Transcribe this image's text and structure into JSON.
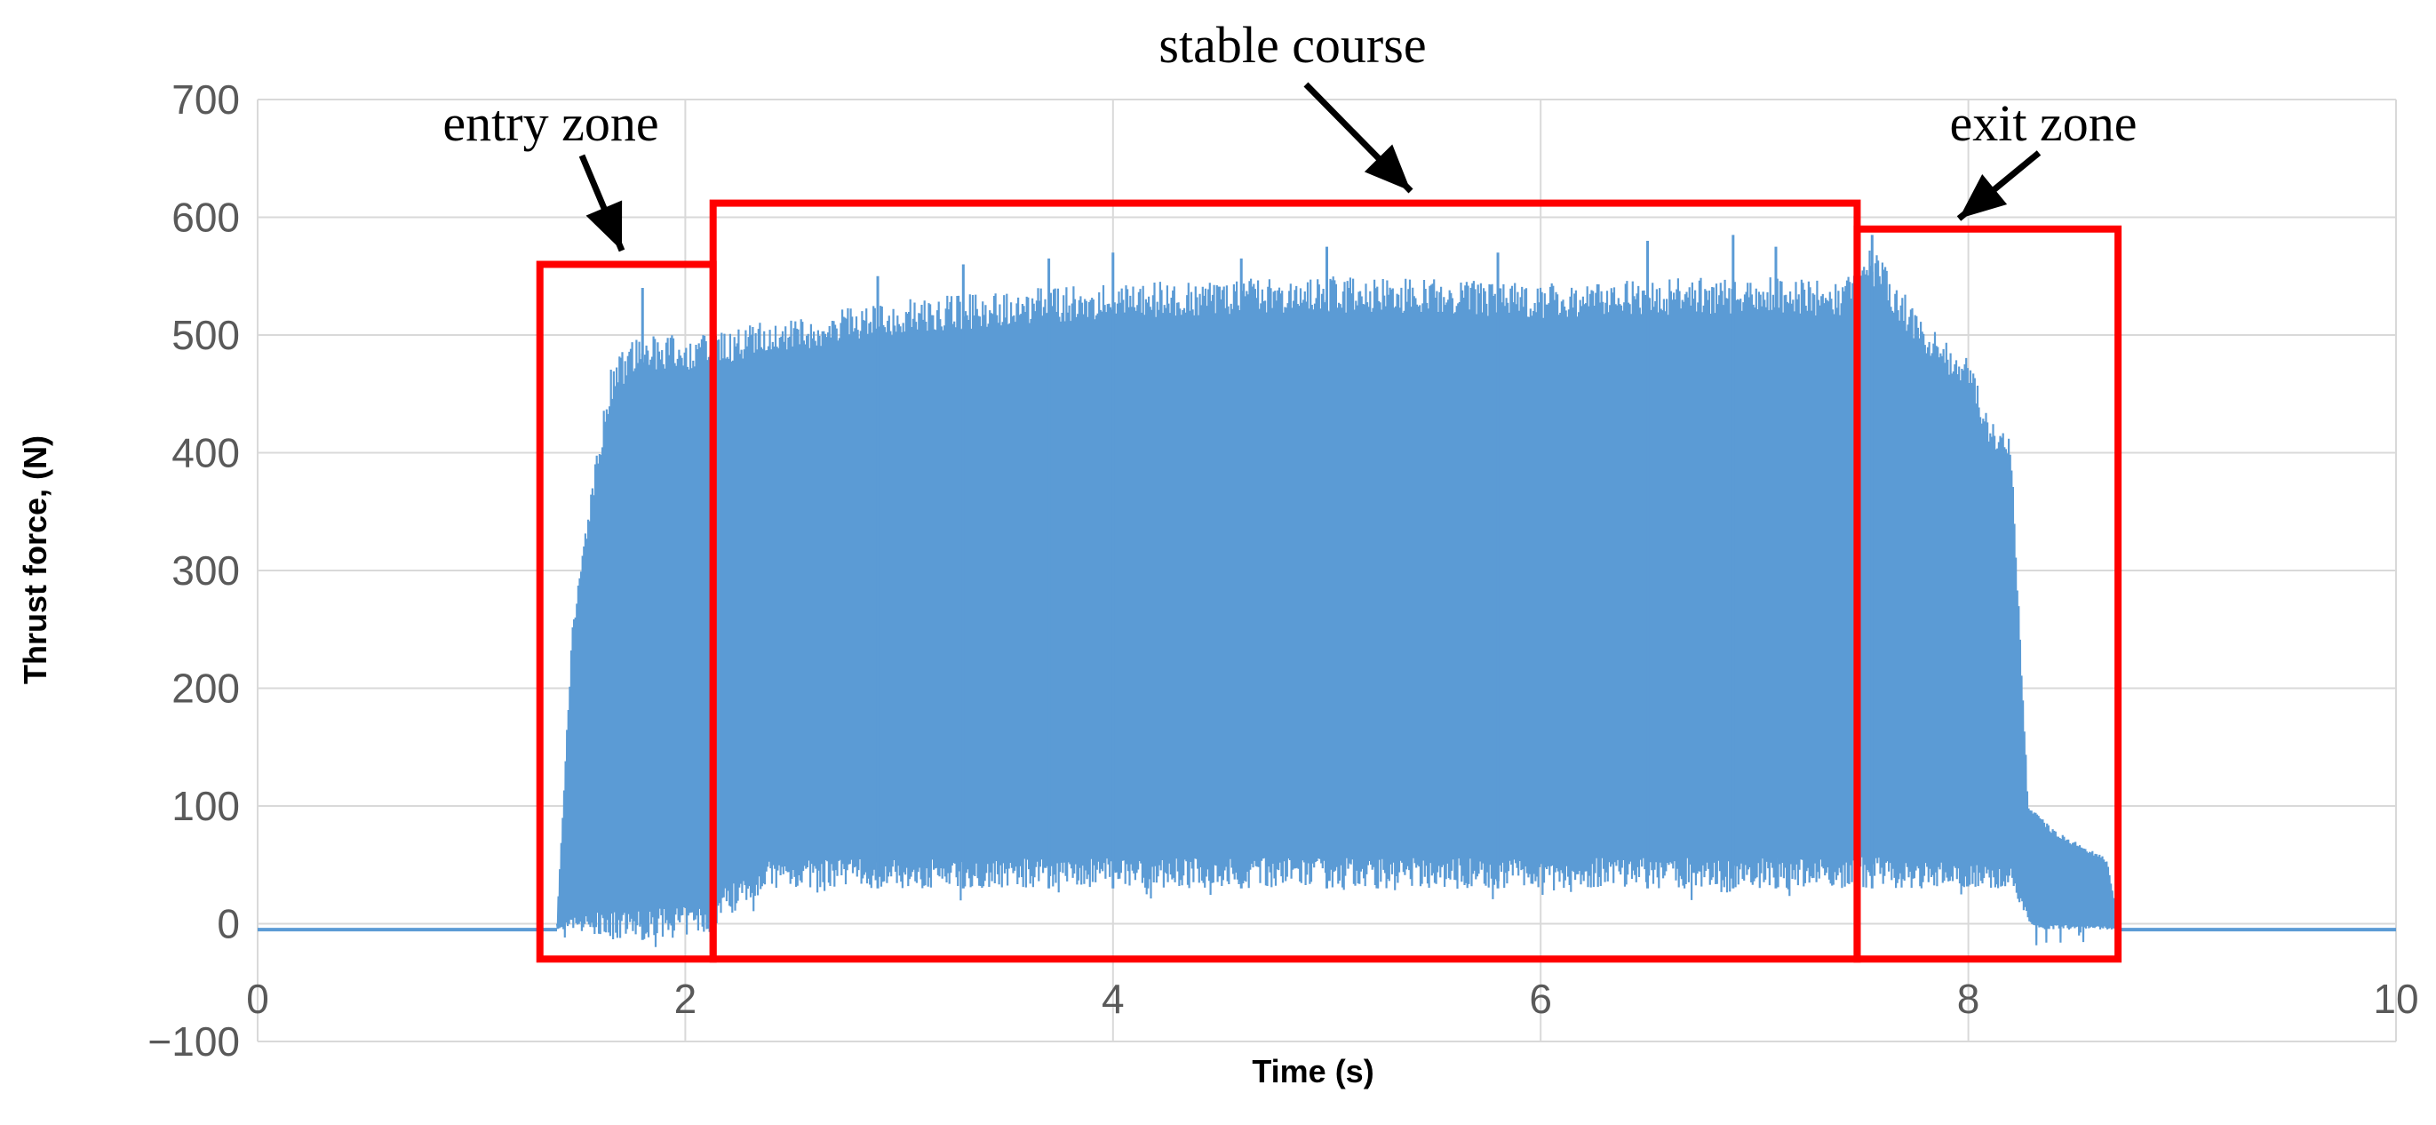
{
  "chart_data": {
    "type": "line",
    "title": "",
    "xlabel": "Time (s)",
    "ylabel": "Thrust force, (N)",
    "xlim": [
      0,
      10
    ],
    "ylim": [
      -100,
      700
    ],
    "xticks": [
      "0",
      "2",
      "4",
      "6",
      "8",
      "10"
    ],
    "yticks": [
      "700",
      "600",
      "500",
      "400",
      "300",
      "200",
      "100",
      "0",
      "−100"
    ],
    "grid": true,
    "legend": "none",
    "series": [
      {
        "color": "#5b9bd5",
        "style": "high-frequency oscillation",
        "baseline": [
          [
            0,
            -5
          ],
          [
            1.4,
            -5
          ]
        ],
        "envelope_max": [
          [
            1.4,
            0
          ],
          [
            1.47,
            250
          ],
          [
            1.55,
            360
          ],
          [
            1.65,
            470
          ],
          [
            1.75,
            500
          ],
          [
            2.1,
            500
          ],
          [
            2.3,
            510
          ],
          [
            3,
            530
          ],
          [
            4,
            545
          ],
          [
            5,
            550
          ],
          [
            6,
            545
          ],
          [
            7,
            550
          ],
          [
            7.4,
            545
          ],
          [
            7.55,
            575
          ],
          [
            7.8,
            510
          ],
          [
            8.0,
            480
          ],
          [
            8.1,
            430
          ],
          [
            8.2,
            410
          ],
          [
            8.28,
            100
          ],
          [
            8.4,
            80
          ],
          [
            8.65,
            55
          ],
          [
            8.7,
            0
          ]
        ],
        "envelope_min": [
          [
            1.4,
            -5
          ],
          [
            1.7,
            -15
          ],
          [
            2.1,
            -10
          ],
          [
            2.2,
            10
          ],
          [
            2.4,
            30
          ],
          [
            7.4,
            30
          ],
          [
            7.6,
            30
          ],
          [
            8.2,
            30
          ],
          [
            8.3,
            -5
          ],
          [
            8.7,
            -5
          ]
        ],
        "after": [
          [
            8.7,
            -5
          ],
          [
            10,
            -5
          ]
        ],
        "peaks": [
          [
            1.8,
            540
          ],
          [
            2.9,
            550
          ],
          [
            3.3,
            560
          ],
          [
            3.7,
            565
          ],
          [
            4.0,
            570
          ],
          [
            4.6,
            565
          ],
          [
            5.0,
            575
          ],
          [
            5.8,
            570
          ],
          [
            6.5,
            580
          ],
          [
            6.9,
            585
          ],
          [
            7.1,
            575
          ],
          [
            7.55,
            585
          ]
        ]
      }
    ],
    "annotations": [
      {
        "text": "entry zone",
        "region": [
          1.32,
          2.13,
          -30,
          560
        ]
      },
      {
        "text": "stable course",
        "region": [
          2.13,
          7.48,
          -30,
          612
        ]
      },
      {
        "text": "exit zone",
        "region": [
          7.48,
          8.7,
          -30,
          590
        ]
      }
    ],
    "annotation_color": "#ff0000"
  }
}
